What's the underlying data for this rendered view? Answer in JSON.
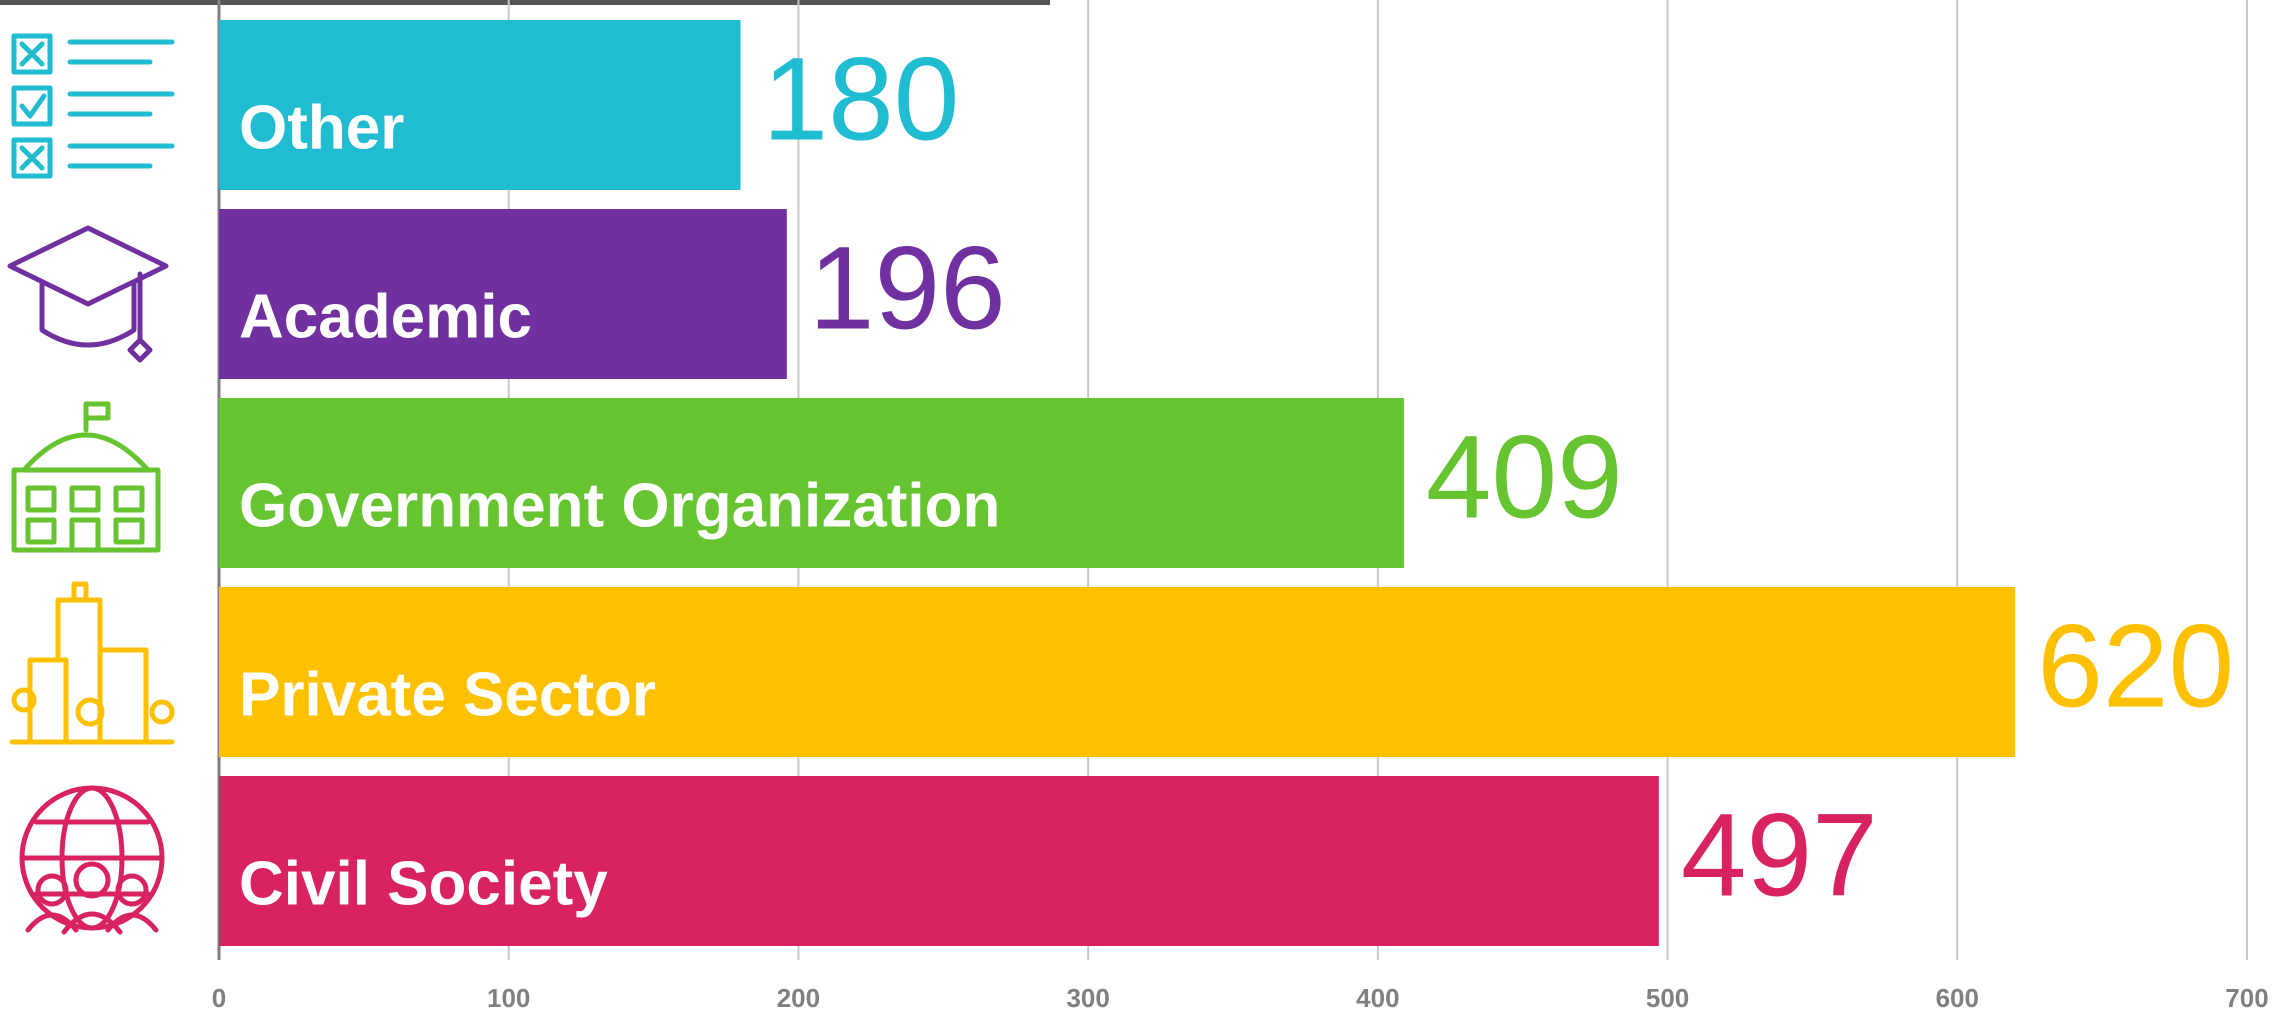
{
  "chart_data": {
    "type": "bar",
    "orientation": "horizontal",
    "categories": [
      "Other",
      "Academic",
      "Government Organization",
      "Private Sector",
      "Civil Society"
    ],
    "values": [
      180,
      196,
      409,
      620,
      497
    ],
    "colors": [
      "#1fbcd2",
      "#7030a0",
      "#66c430",
      "#ffc000",
      "#d9235f"
    ],
    "xlim": [
      0,
      700
    ],
    "xticks": [
      0,
      100,
      200,
      300,
      400,
      500,
      600,
      700
    ],
    "grid": true
  }
}
